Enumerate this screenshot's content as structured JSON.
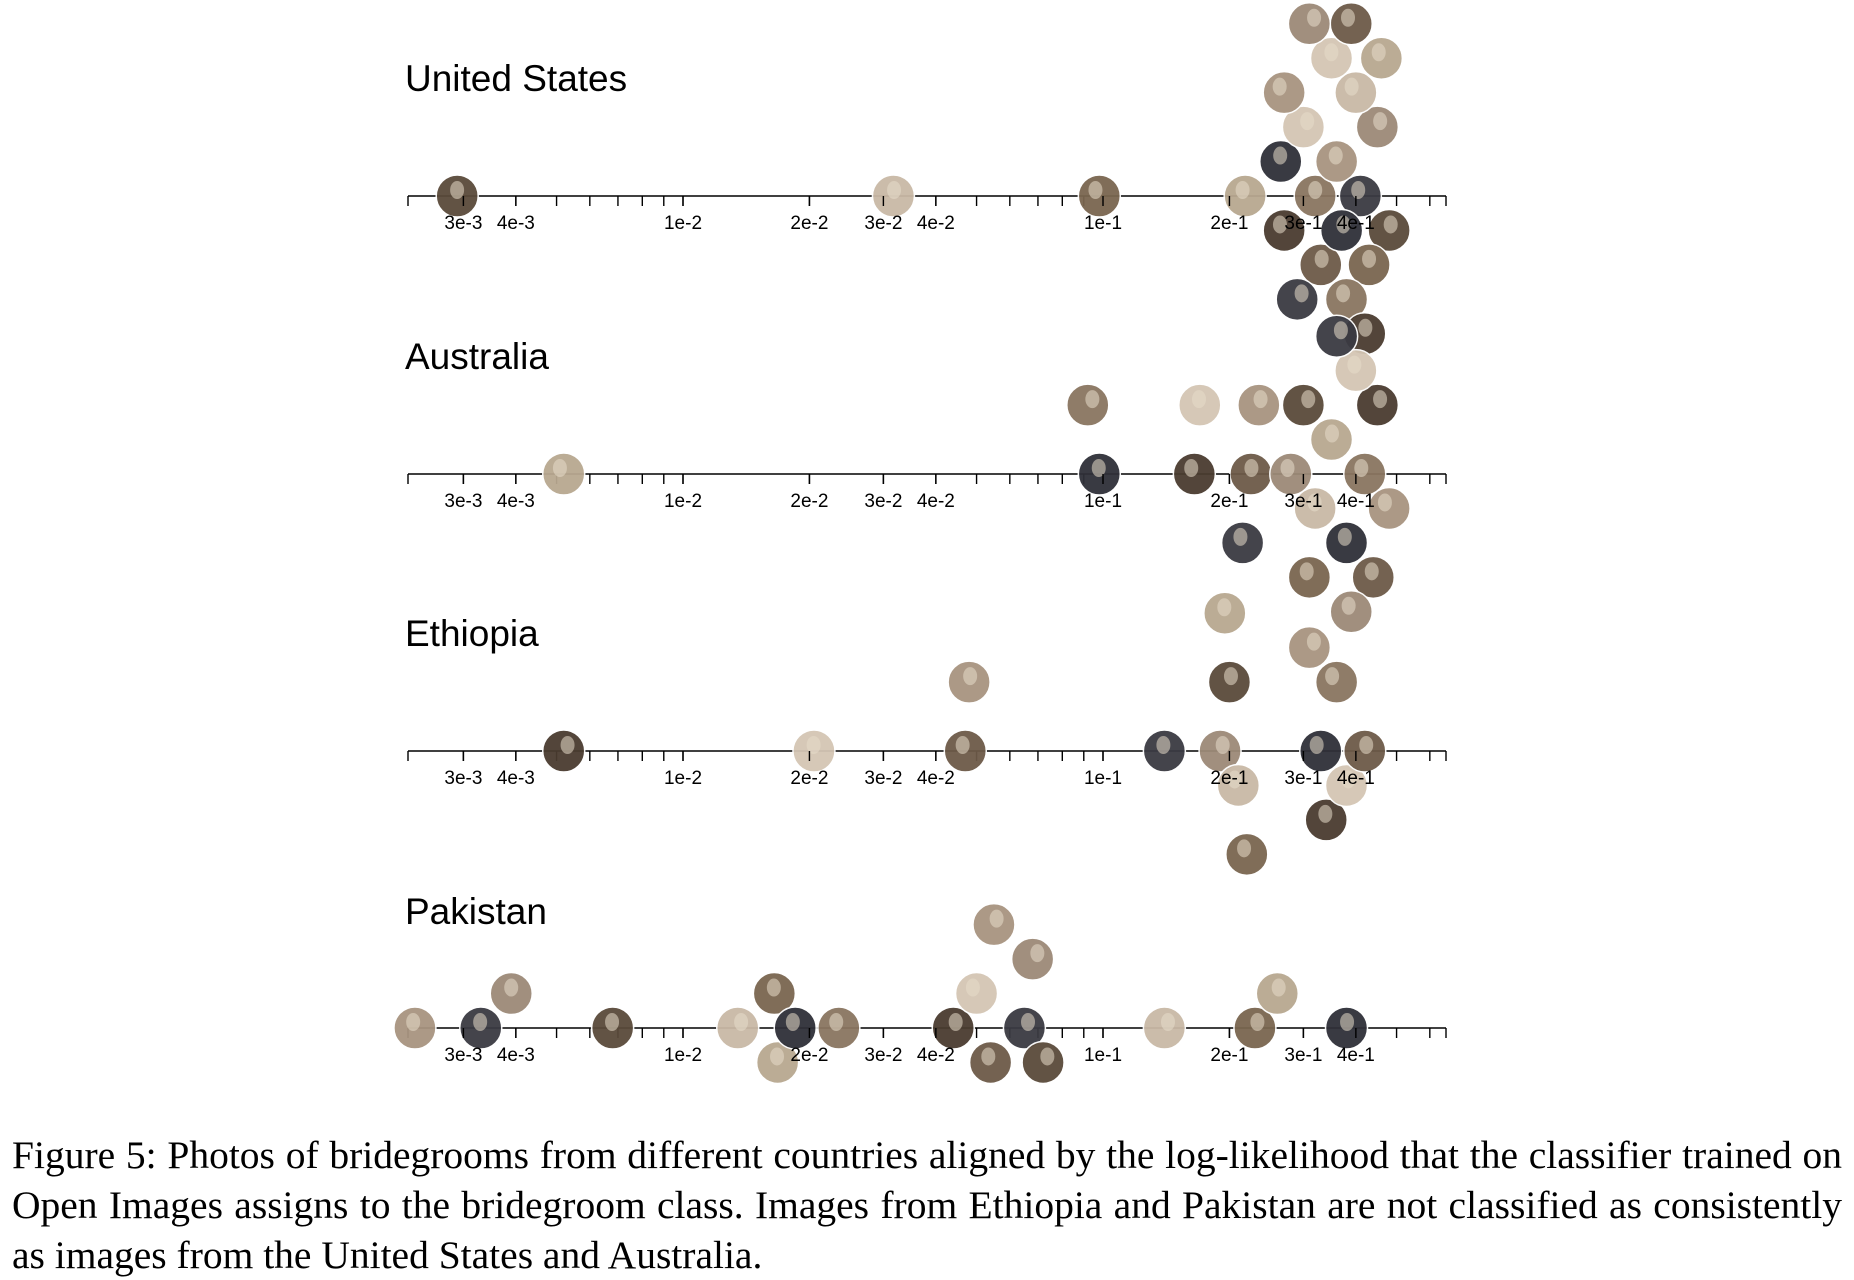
{
  "figure": {
    "tick_labels": [
      "3e-3",
      "4e-3",
      "1e-2",
      "2e-2",
      "3e-2",
      "4e-2",
      "1e-1",
      "2e-1",
      "3e-1",
      "4e-1"
    ],
    "tick_values": [
      0.003,
      0.004,
      0.01,
      0.02,
      0.03,
      0.04,
      0.1,
      0.2,
      0.3,
      0.4
    ],
    "panels": [
      {
        "title": "United States",
        "photos": [
          0.0029,
          0.0317,
          0.098,
          0.218,
          0.265,
          0.32,
          0.27,
          0.3,
          0.33,
          0.36,
          0.41,
          0.45,
          0.48,
          0.4,
          0.43,
          0.46,
          0.37,
          0.38,
          0.42,
          0.35,
          0.39,
          0.27,
          0.29,
          0.31
        ]
      },
      {
        "title": "Australia",
        "photos": [
          0.0052,
          0.098,
          0.092,
          0.165,
          0.17,
          0.225,
          0.235,
          0.215,
          0.28,
          0.3,
          0.32,
          0.31,
          0.35,
          0.38,
          0.42,
          0.45,
          0.4,
          0.44,
          0.48,
          0.36,
          0.39
        ]
      },
      {
        "title": "Ethiopia",
        "photos": [
          0.0052,
          0.0205,
          0.047,
          0.048,
          0.14,
          0.19,
          0.2,
          0.21,
          0.22,
          0.195,
          0.33,
          0.36,
          0.34,
          0.38,
          0.42,
          0.31
        ]
      },
      {
        "title": "Pakistan",
        "photos": [
          0.0023,
          0.0033,
          0.0039,
          0.0068,
          0.0135,
          0.0165,
          0.0168,
          0.0185,
          0.0235,
          0.044,
          0.05,
          0.054,
          0.055,
          0.065,
          0.068,
          0.072,
          0.14,
          0.23,
          0.26,
          0.38
        ]
      }
    ]
  },
  "caption": "Figure 5:   Photos of bridegrooms from different countries aligned by the log-likelihood that the classifier trained on Open Images assigns to the bridegroom class. Images from Ethiopia and Pakistan are not classified as consistently as images from the United States and Australia."
}
